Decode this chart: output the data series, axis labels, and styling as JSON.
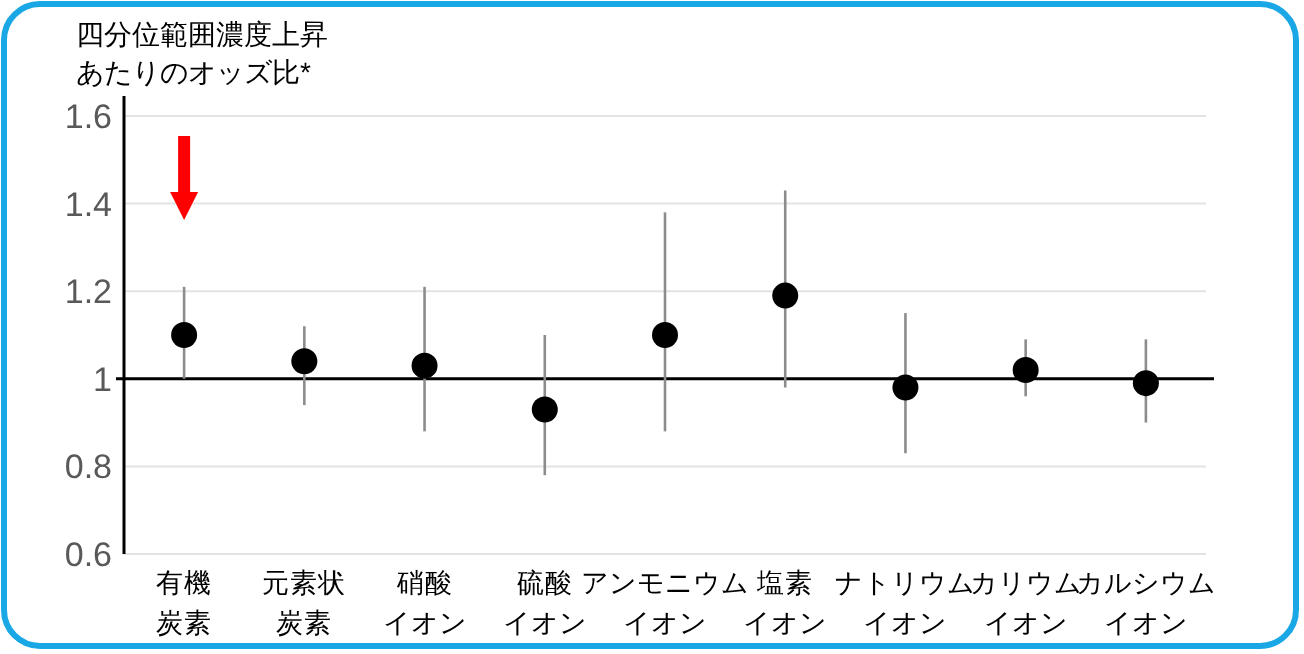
{
  "chart_data": {
    "type": "scatter",
    "ylabel": "四分位範囲濃度上昇あたりのオッズ比*",
    "categories": [
      "有機炭素",
      "元素状炭素",
      "硝酸イオン",
      "硫酸イオン",
      "アンモニウムイオン",
      "塩素イオン",
      "ナトリウムイオン",
      "カリウムイオン",
      "カルシウムイオン"
    ],
    "values": [
      1.1,
      1.04,
      1.03,
      0.93,
      1.1,
      1.19,
      0.98,
      1.02,
      0.99
    ],
    "errors": [
      [
        1.0,
        1.21
      ],
      [
        0.94,
        1.12
      ],
      [
        0.88,
        1.21
      ],
      [
        0.78,
        1.1
      ],
      [
        0.88,
        1.38
      ],
      [
        0.98,
        1.43
      ],
      [
        0.83,
        1.15
      ],
      [
        0.96,
        1.09
      ],
      [
        0.9,
        1.09
      ]
    ],
    "color": "#000000",
    "marker": "circle",
    "ylim": [
      0.6,
      1.6
    ],
    "yticks": [
      {
        "value": 0.6,
        "label": "0.6"
      },
      {
        "value": 0.8,
        "label": "0.8"
      },
      1,
      {
        "value": 1.2,
        "label": "1.2"
      },
      {
        "value": 1.4,
        "label": "1.4"
      },
      {
        "value": 1.6,
        "label": "1.6"
      }
    ],
    "grid": "y",
    "ref_lines": [
      {
        "axis": "y",
        "value": 1,
        "color": "#000000"
      }
    ]
  }
}
